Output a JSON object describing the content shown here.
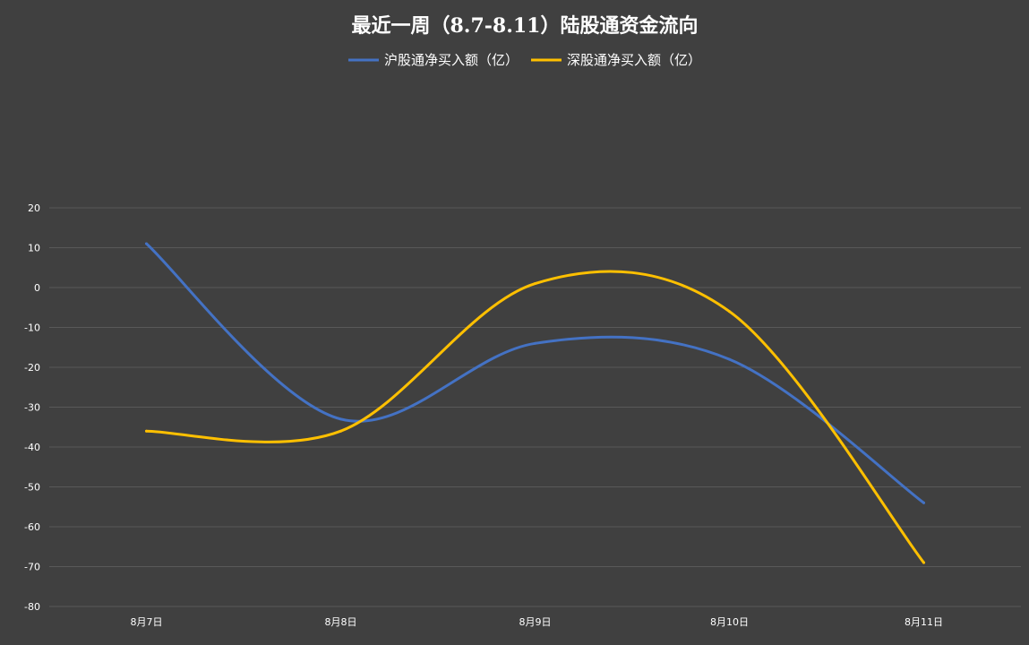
{
  "chart_data": {
    "type": "line",
    "title": "最近一周（8.7-8.11）陆股通资金流向",
    "categories": [
      "8月7日",
      "8月8日",
      "8月9日",
      "8月10日",
      "8月11日"
    ],
    "series": [
      {
        "name": "沪股通净买入额（亿）",
        "values": [
          11,
          -33,
          -14,
          -18,
          -54
        ],
        "color": "#4472C4"
      },
      {
        "name": "深股通净买入额（亿）",
        "values": [
          -36,
          -36,
          1,
          -6,
          -69
        ],
        "color": "#FFC000"
      }
    ],
    "ylim": [
      -80,
      20
    ],
    "yticks": [
      20,
      10,
      0,
      -10,
      -20,
      -30,
      -40,
      -50,
      -60,
      -70,
      -80
    ],
    "grid": true,
    "smooth": true,
    "legend_position": "top",
    "colors": {
      "background": "#404040",
      "gridline": "#595959",
      "text": "#FFFFFF"
    }
  }
}
